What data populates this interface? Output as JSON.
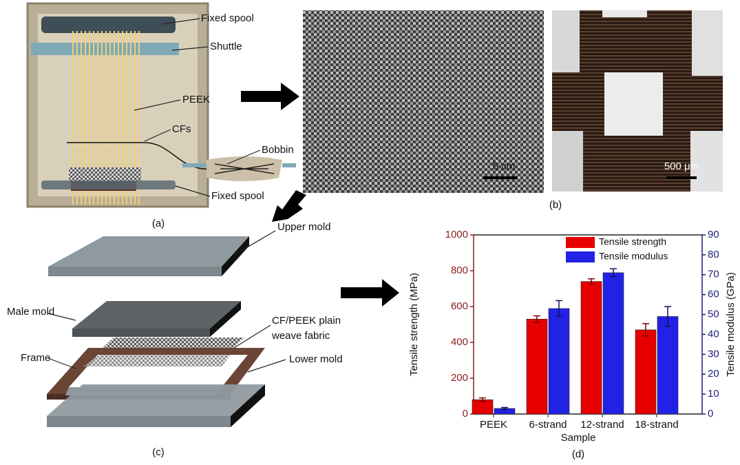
{
  "panels": {
    "a": {
      "label": "(a)",
      "callouts": [
        "Fixed spool",
        "Shuttle",
        "PEEK",
        "CFs",
        "Bobbin",
        "Fixed spool"
      ]
    },
    "b": {
      "label": "(b)",
      "scale_left": "5 cm",
      "scale_right": "500 μm"
    },
    "c": {
      "label": "(c)",
      "callouts": [
        "Upper mold",
        "Male mold",
        "CF/PEEK plain",
        "weave fabric",
        "Frame",
        "Lower mold"
      ]
    },
    "d": {
      "label": "(d)"
    }
  },
  "chart_data": {
    "type": "bar",
    "xlabel": "Sample",
    "ylabel": "Tensile strength (MPa)",
    "y2label": "Tensile modulus (GPa)",
    "categories": [
      "PEEK",
      "6-strand",
      "12-strand",
      "18-strand"
    ],
    "series": [
      {
        "name": "Tensile strength",
        "color": "#e60000",
        "values": [
          80,
          530,
          740,
          470
        ],
        "errors": [
          10,
          18,
          15,
          35
        ]
      },
      {
        "name": "Tensile modulus",
        "color": "#2222e6",
        "axis": "y2",
        "values": [
          2.8,
          53,
          71,
          49
        ],
        "errors": [
          0.5,
          4,
          2,
          5
        ]
      }
    ],
    "ylim": [
      0,
      1000
    ],
    "yticks": [
      0,
      200,
      400,
      600,
      800,
      1000
    ],
    "y2lim": [
      0,
      90
    ],
    "y2ticks": [
      0,
      10,
      20,
      30,
      40,
      50,
      60,
      70,
      80,
      90
    ],
    "y_axis_color": "#8b1c1c",
    "y2_axis_color": "#1c1c7a",
    "legend": "upper right"
  }
}
